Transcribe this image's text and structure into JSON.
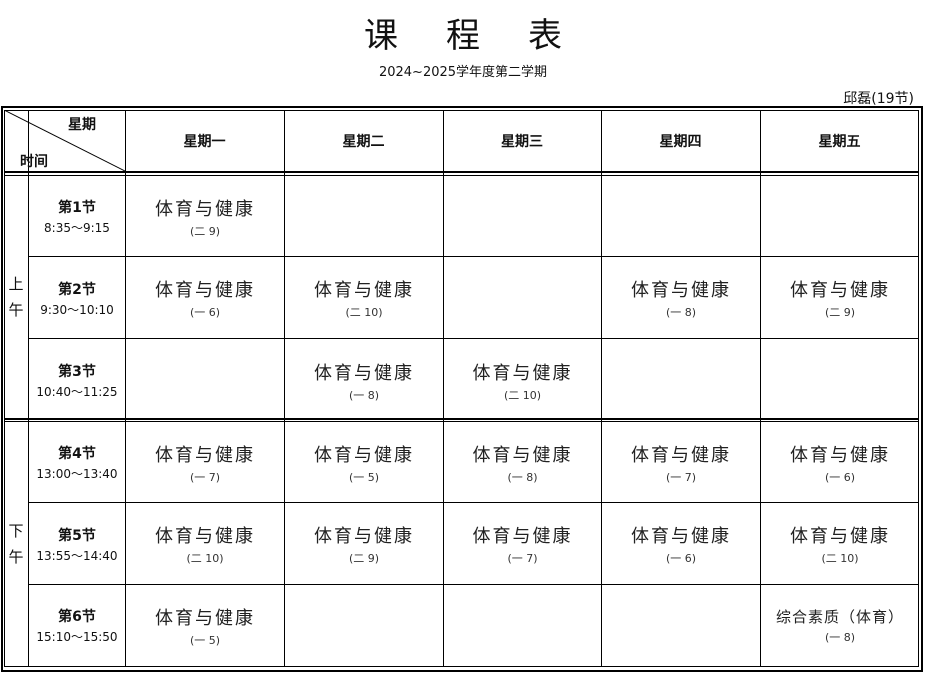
{
  "title": "课程表",
  "subtitle": "2024~2025学年度第二学期",
  "teacher": "邱磊(19节)",
  "corner": {
    "top": "星期",
    "bottom": "时间"
  },
  "days": [
    "星期一",
    "星期二",
    "星期三",
    "星期四",
    "星期五"
  ],
  "halves": [
    {
      "label": "上\n午"
    },
    {
      "label": "下\n午"
    }
  ],
  "periods": [
    {
      "label": "第1节",
      "time": "8:35～9:15",
      "cells": [
        {
          "subject": "体育与健康",
          "room": "(二 9)"
        },
        null,
        null,
        null,
        null
      ]
    },
    {
      "label": "第2节",
      "time": "9:30～10:10",
      "cells": [
        {
          "subject": "体育与健康",
          "room": "(一 6)"
        },
        {
          "subject": "体育与健康",
          "room": "(二 10)"
        },
        null,
        {
          "subject": "体育与健康",
          "room": "(一 8)"
        },
        {
          "subject": "体育与健康",
          "room": "(二 9)"
        }
      ]
    },
    {
      "label": "第3节",
      "time": "10:40～11:25",
      "cells": [
        null,
        {
          "subject": "体育与健康",
          "room": "(一 8)"
        },
        {
          "subject": "体育与健康",
          "room": "(二 10)"
        },
        null,
        null
      ]
    },
    {
      "label": "第4节",
      "time": "13:00～13:40",
      "cells": [
        {
          "subject": "体育与健康",
          "room": "(一 7)"
        },
        {
          "subject": "体育与健康",
          "room": "(一 5)"
        },
        {
          "subject": "体育与健康",
          "room": "(一 8)"
        },
        {
          "subject": "体育与健康",
          "room": "(一 7)"
        },
        {
          "subject": "体育与健康",
          "room": "(一 6)"
        }
      ]
    },
    {
      "label": "第5节",
      "time": "13:55～14:40",
      "cells": [
        {
          "subject": "体育与健康",
          "room": "(二 10)"
        },
        {
          "subject": "体育与健康",
          "room": "(二 9)"
        },
        {
          "subject": "体育与健康",
          "room": "(一 7)"
        },
        {
          "subject": "体育与健康",
          "room": "(一 6)"
        },
        {
          "subject": "体育与健康",
          "room": "(二 10)"
        }
      ]
    },
    {
      "label": "第6节",
      "time": "15:10～15:50",
      "cells": [
        {
          "subject": "体育与健康",
          "room": "(一 5)"
        },
        null,
        null,
        null,
        {
          "subject": "综合素质（体育）",
          "room": "(一 8)"
        }
      ]
    }
  ]
}
